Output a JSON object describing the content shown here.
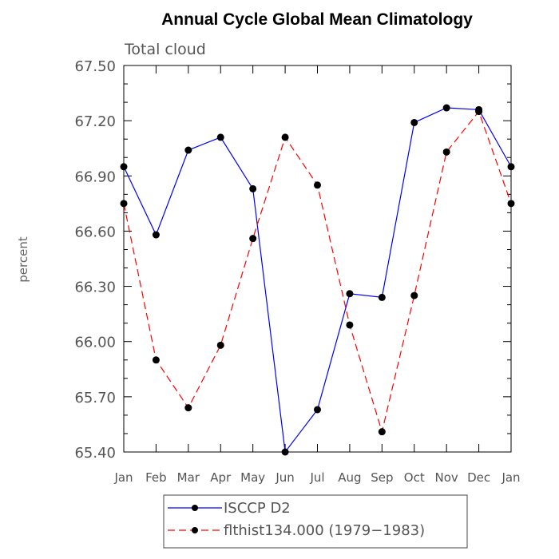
{
  "chart_data": {
    "type": "line",
    "title": "Annual Cycle Global Mean Climatology",
    "subtitle": "Total cloud",
    "xlabel": "",
    "ylabel": "percent",
    "categories": [
      "Jan",
      "Feb",
      "Mar",
      "Apr",
      "May",
      "Jun",
      "Jul",
      "Aug",
      "Sep",
      "Oct",
      "Nov",
      "Dec",
      "Jan"
    ],
    "ylim": [
      65.4,
      67.5
    ],
    "yticks": [
      "65.40",
      "65.70",
      "66.00",
      "66.30",
      "66.60",
      "66.90",
      "67.20",
      "67.50"
    ],
    "ytick_values": [
      65.4,
      65.7,
      66.0,
      66.3,
      66.6,
      66.9,
      67.2,
      67.5
    ],
    "legend_position": "bottom-center",
    "series": [
      {
        "name": "ISCCP D2",
        "color": "#0000ff",
        "dash": "solid",
        "values": [
          66.95,
          66.58,
          67.04,
          67.11,
          66.83,
          65.4,
          65.63,
          66.26,
          66.24,
          67.19,
          67.27,
          67.26,
          66.95
        ]
      },
      {
        "name": "flthist134.000 (1979−1983)",
        "color": "#ff0000",
        "dash": "dashed",
        "values": [
          66.75,
          65.9,
          65.64,
          65.98,
          66.56,
          67.11,
          66.85,
          66.09,
          65.51,
          66.25,
          67.03,
          67.25,
          66.75
        ]
      }
    ]
  }
}
